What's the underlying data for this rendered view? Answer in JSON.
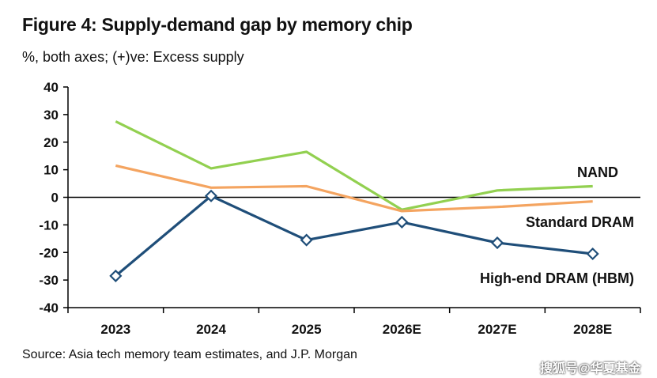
{
  "title": "Figure 4: Supply-demand gap by memory chip",
  "subtitle": "%, both axes; (+)ve: Excess supply",
  "source": "Source: Asia tech memory team estimates, and J.P. Morgan",
  "watermark": "搜狐号@华夏基金",
  "chart_data": {
    "type": "line",
    "categories": [
      "2023",
      "2024",
      "2025",
      "2026E",
      "2027E",
      "2028E"
    ],
    "ylim": [
      -40,
      40
    ],
    "yticks": [
      -40,
      -30,
      -20,
      -10,
      0,
      10,
      20,
      30,
      40
    ],
    "grid": false,
    "series": [
      {
        "name": "NAND",
        "color": "#92d050",
        "marker": "none",
        "values": [
          27.5,
          10.5,
          16.5,
          -4.5,
          2.5,
          4
        ]
      },
      {
        "name": "Standard DRAM",
        "color": "#f4a460",
        "marker": "none",
        "values": [
          11.5,
          3.5,
          4,
          -5,
          -3.5,
          -1.5
        ]
      },
      {
        "name": "High-end DRAM (HBM)",
        "color": "#1f4e79",
        "marker": "diamond",
        "values": [
          -28.5,
          0.5,
          -15.5,
          -9,
          -16.5,
          -20.5
        ]
      }
    ]
  }
}
